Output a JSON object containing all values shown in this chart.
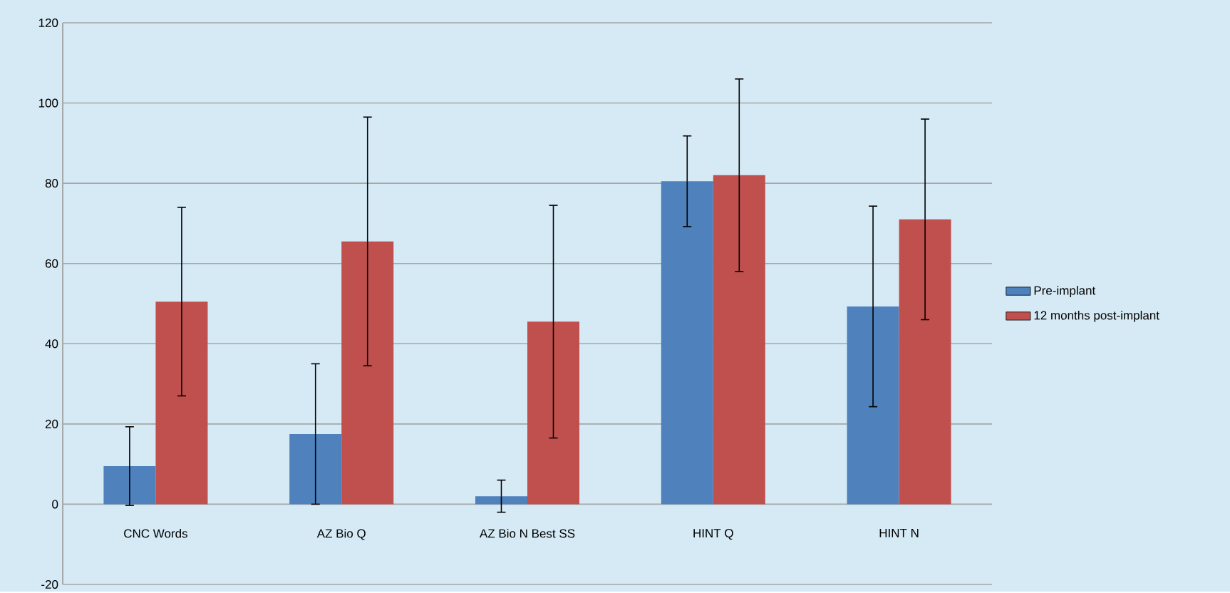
{
  "chart_data": {
    "type": "bar",
    "categories": [
      "CNC Words",
      "AZ Bio Q",
      "AZ Bio N Best SS",
      "HINT Q",
      "HINT N"
    ],
    "series": [
      {
        "name": "Pre-implant",
        "color": "#4f81bd",
        "values": [
          9.5,
          17.5,
          2,
          80.5,
          49.3
        ],
        "errors": [
          9.8,
          17.5,
          4,
          11.3,
          25
        ]
      },
      {
        "name": "12 months post-implant",
        "color": "#c0504d",
        "values": [
          50.5,
          65.5,
          45.5,
          82,
          71
        ],
        "errors": [
          23.5,
          31,
          29,
          24,
          25
        ]
      }
    ],
    "ylim": [
      -20,
      120
    ],
    "yticks": [
      -20,
      0,
      20,
      40,
      60,
      80,
      100,
      120
    ],
    "grid": "y",
    "legend": "right"
  }
}
